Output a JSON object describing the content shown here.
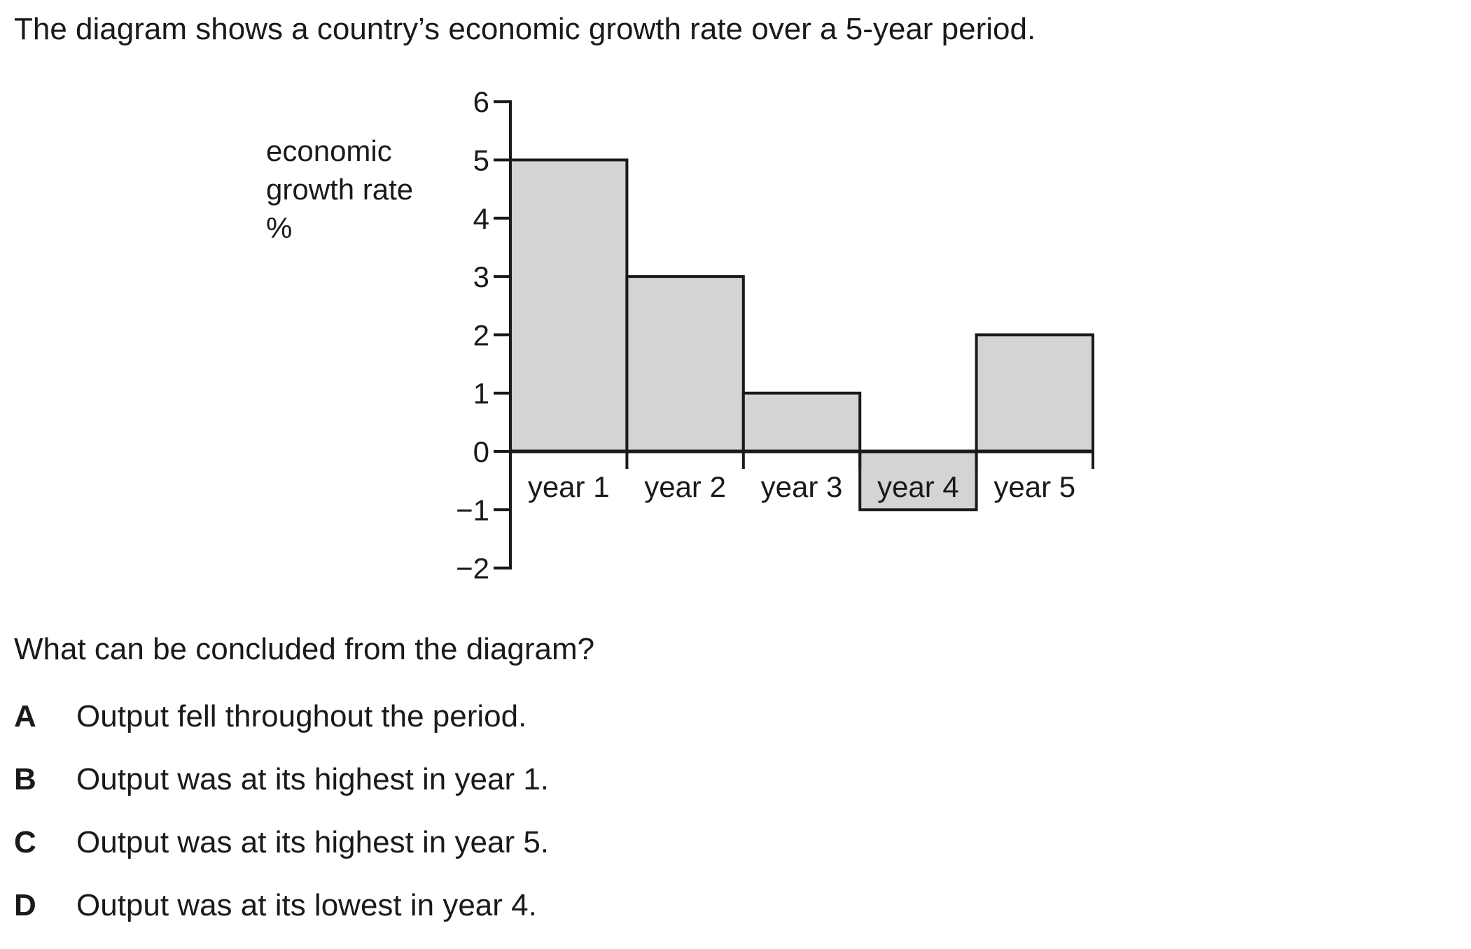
{
  "intro": "The diagram shows a country’s economic growth rate over a 5-year period.",
  "chart_data": {
    "type": "bar",
    "title": "",
    "ylabel": [
      "economic",
      "growth rate",
      "%"
    ],
    "xlabel": "",
    "categories": [
      "year 1",
      "year 2",
      "year 3",
      "year 4",
      "year 5"
    ],
    "values": [
      5,
      3,
      1,
      -1,
      2
    ],
    "ylim": [
      -2,
      6
    ],
    "yticks": [
      6,
      5,
      4,
      3,
      2,
      1,
      0,
      -1,
      -2
    ],
    "ytick_labels": [
      "6",
      "5",
      "4",
      "3",
      "2",
      "1",
      "0",
      "−1",
      "−2"
    ],
    "bar_color": "#d4d4d4",
    "stroke_color": "#1a1a1a",
    "grid": false,
    "legend": "none"
  },
  "question": "What can be concluded from the diagram?",
  "options": [
    {
      "letter": "A",
      "text": "Output fell throughout the period."
    },
    {
      "letter": "B",
      "text": "Output was at its highest in year 1."
    },
    {
      "letter": "C",
      "text": "Output was at its highest in year 5."
    },
    {
      "letter": "D",
      "text": "Output was at its lowest in year 4."
    }
  ]
}
